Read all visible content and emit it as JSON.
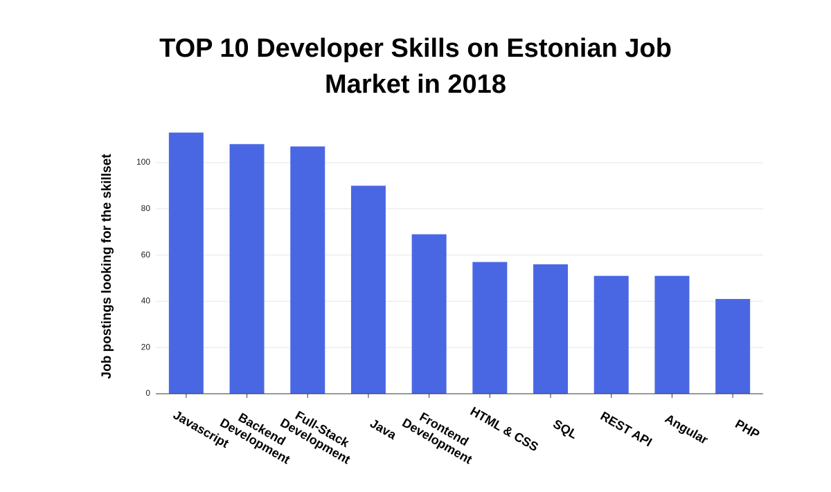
{
  "chart_data": {
    "type": "bar",
    "title": "TOP 10 Developer Skills on Estonian Job Market in 2018",
    "y_label": "Job postings looking for the skillset",
    "categories": [
      "Javascript",
      "Backend Development",
      "Full-Stack Development",
      "Java",
      "Frontend Development",
      "HTML & CSS",
      "SQL",
      "REST API",
      "Angular",
      "PHP"
    ],
    "values": [
      113,
      108,
      107,
      90,
      69,
      57,
      56,
      51,
      51,
      41
    ],
    "color": "#4a67e3",
    "ylim": [
      0,
      120
    ],
    "yticks": [
      0,
      20,
      40,
      60,
      80,
      100
    ],
    "grid": true
  }
}
